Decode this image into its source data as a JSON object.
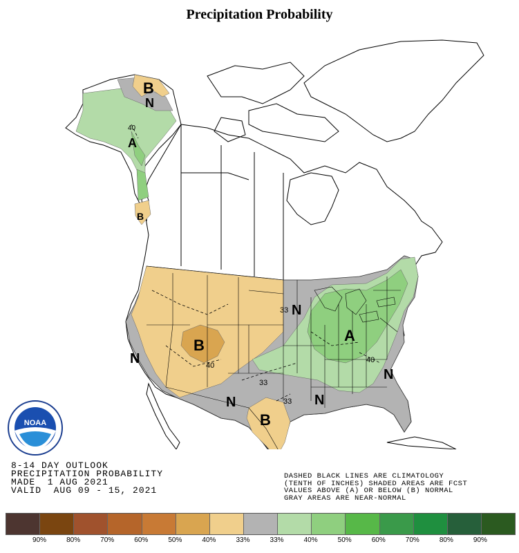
{
  "title": "Precipitation Probability",
  "outlook": {
    "line1": "8-14 DAY OUTLOOK",
    "line2": "PRECIPITATION PROBABILITY",
    "line3": "MADE  1 AUG 2021",
    "line4": "VALID  AUG 09 - 15, 2021"
  },
  "notes": {
    "line1": "DASHED BLACK LINES ARE CLIMATOLOGY",
    "line2": "(TENTH OF INCHES) SHADED AREAS ARE FCST",
    "line3": "VALUES ABOVE (A) OR BELOW (B) NORMAL",
    "line4": "GRAY AREAS ARE NEAR-NORMAL"
  },
  "logo_text": "NOAA",
  "map_labels": {
    "alaska_b": "B",
    "alaska_n": "N",
    "alaska_a": "A",
    "alaska_40": "40",
    "panhandle_b": "B",
    "colorado_b": "B",
    "colorado_40": "40",
    "west_n": "N",
    "south_n": "N",
    "gulf_n": "N",
    "midwest_n": "N",
    "east_n": "N",
    "texas_b": "B",
    "texas_33": "33",
    "ohio_a": "A",
    "east_40": "40",
    "plains_33": "33",
    "midwest_33": "33"
  },
  "legend": {
    "colors": [
      "#4d3530",
      "#7a4510",
      "#a0522d",
      "#b5652a",
      "#c87a35",
      "#d9a550",
      "#f0cf8c",
      "#b3b3b3",
      "#b3dba8",
      "#8fcf7f",
      "#57b848",
      "#3a9a4a",
      "#1f8f3f",
      "#265f3a",
      "#2b5a20"
    ],
    "labels": [
      "90%",
      "80%",
      "70%",
      "60%",
      "50%",
      "40%",
      "33%",
      "33%",
      "40%",
      "50%",
      "60%",
      "70%",
      "80%",
      "90%"
    ]
  }
}
